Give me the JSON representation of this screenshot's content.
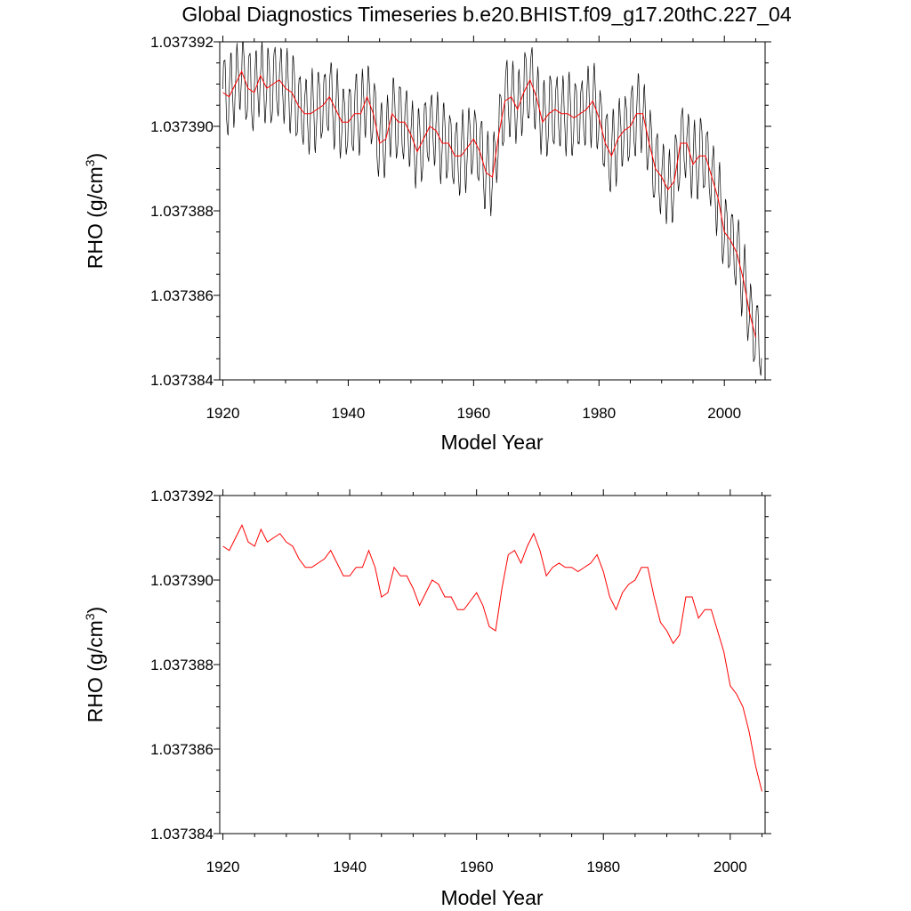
{
  "chart_data": [
    {
      "type": "line",
      "title": "Global Diagnostics Timeseries b.e20.BHIST.f09_g17.20thC.227_04",
      "xlabel": "Model Year",
      "ylabel": "RHO (g/cm",
      "ylabel_sup": "3",
      "ylabel_end": ")",
      "xlim": [
        1919.5,
        2006.5
      ],
      "ylim": [
        1.037384,
        1.037392
      ],
      "x_ticks": [
        1920,
        1940,
        1960,
        1980,
        2000
      ],
      "x_tick_labels": [
        "1920",
        "1940",
        "1960",
        "1980",
        "2000"
      ],
      "y_ticks": [
        1.037384,
        1.037386,
        1.037388,
        1.03739,
        1.037392
      ],
      "y_tick_labels": [
        "1.037384",
        "1.037386",
        "1.037388",
        "1.037390",
        "1.037392"
      ],
      "grid": false,
      "series": [
        {
          "kind": "monthly",
          "color": "#000000",
          "x_start": 1920,
          "x_step": 0.08333333,
          "amplitude": [
            1.0,
            1.0,
            1.0,
            1.0,
            1.0,
            1.0,
            1.0,
            1.0,
            1.0,
            1.0,
            1.0,
            1.0,
            1.0,
            1.0,
            1.0,
            1.0,
            1.0,
            1.0,
            1.0,
            1.0,
            1.0,
            1.0,
            1.0,
            1.0,
            1.0,
            1.0,
            1.0,
            1.0,
            1.0,
            1.0,
            1.0,
            1.0,
            1.0,
            1.0,
            1.0,
            1.0,
            1.0,
            1.0,
            1.0,
            1.0,
            1.0,
            1.0,
            1.0,
            1.0,
            1.0,
            1.0,
            1.0,
            1.0,
            1.0,
            1.0,
            1.0,
            1.0,
            1.0,
            1.0,
            1.0,
            1.0,
            1.0,
            1.0,
            1.0,
            1.0,
            1.0,
            1.0,
            1.0,
            1.0,
            1.0,
            1.0,
            1.0,
            1.0,
            1.0,
            1.0,
            1.0,
            1.0,
            1.0,
            1.0,
            1.0,
            1.0,
            1.0,
            1.0,
            1.0,
            1.0,
            1.0,
            1.0,
            1.0,
            1.0,
            1.0,
            1.0
          ],
          "annual_mean": [
            1.0373908,
            1.0373907,
            1.037391,
            1.0373913,
            1.0373909,
            1.0373908,
            1.0373912,
            1.0373909,
            1.037391,
            1.0373911,
            1.0373909,
            1.0373908,
            1.0373905,
            1.0373903,
            1.0373903,
            1.0373904,
            1.0373905,
            1.0373907,
            1.0373904,
            1.0373901,
            1.0373901,
            1.0373903,
            1.0373903,
            1.0373907,
            1.0373903,
            1.0373896,
            1.0373897,
            1.0373903,
            1.0373901,
            1.0373901,
            1.0373898,
            1.0373894,
            1.0373897,
            1.03739,
            1.0373899,
            1.0373896,
            1.0373896,
            1.0373893,
            1.0373893,
            1.0373895,
            1.0373897,
            1.0373894,
            1.0373889,
            1.0373888,
            1.0373898,
            1.0373906,
            1.0373907,
            1.0373904,
            1.0373908,
            1.0373911,
            1.0373907,
            1.0373901,
            1.0373903,
            1.0373904,
            1.0373903,
            1.0373903,
            1.0373902,
            1.0373903,
            1.0373904,
            1.0373906,
            1.0373902,
            1.0373896,
            1.0373893,
            1.0373897,
            1.0373899,
            1.03739,
            1.0373903,
            1.0373903,
            1.0373896,
            1.037389,
            1.0373888,
            1.0373885,
            1.0373887,
            1.0373896,
            1.0373896,
            1.0373891,
            1.0373893,
            1.0373893,
            1.0373888,
            1.0373883,
            1.0373875,
            1.0373873,
            1.037387,
            1.0373864,
            1.0373856,
            1.037385
          ],
          "seasonal_amplitude": 8.5e-07
        },
        {
          "kind": "annual",
          "color": "#ff0000",
          "x_start": 1920,
          "x_step": 1,
          "values": [
            1.0373908,
            1.0373907,
            1.037391,
            1.0373913,
            1.0373909,
            1.0373908,
            1.0373912,
            1.0373909,
            1.037391,
            1.0373911,
            1.0373909,
            1.0373908,
            1.0373905,
            1.0373903,
            1.0373903,
            1.0373904,
            1.0373905,
            1.0373907,
            1.0373904,
            1.0373901,
            1.0373901,
            1.0373903,
            1.0373903,
            1.0373907,
            1.0373903,
            1.0373896,
            1.0373897,
            1.0373903,
            1.0373901,
            1.0373901,
            1.0373898,
            1.0373894,
            1.0373897,
            1.03739,
            1.0373899,
            1.0373896,
            1.0373896,
            1.0373893,
            1.0373893,
            1.0373895,
            1.0373897,
            1.0373894,
            1.0373889,
            1.0373888,
            1.0373898,
            1.0373906,
            1.0373907,
            1.0373904,
            1.0373908,
            1.0373911,
            1.0373907,
            1.0373901,
            1.0373903,
            1.0373904,
            1.0373903,
            1.0373903,
            1.0373902,
            1.0373903,
            1.0373904,
            1.0373906,
            1.0373902,
            1.0373896,
            1.0373893,
            1.0373897,
            1.0373899,
            1.03739,
            1.0373903,
            1.0373903,
            1.0373896,
            1.037389,
            1.0373888,
            1.0373885,
            1.0373887,
            1.0373896,
            1.0373896,
            1.0373891,
            1.0373893,
            1.0373893,
            1.0373888,
            1.0373883,
            1.0373875,
            1.0373873,
            1.037387,
            1.0373864,
            1.0373856,
            1.037385
          ]
        }
      ]
    },
    {
      "type": "line",
      "title": "",
      "xlabel": "Model Year",
      "ylabel": "RHO (g/cm",
      "ylabel_sup": "3",
      "ylabel_end": ")",
      "xlim": [
        1919.5,
        2005.5
      ],
      "ylim": [
        1.037384,
        1.037392
      ],
      "x_ticks": [
        1920,
        1940,
        1960,
        1980,
        2000
      ],
      "x_tick_labels": [
        "1920",
        "1940",
        "1960",
        "1980",
        "2000"
      ],
      "y_ticks": [
        1.037384,
        1.037386,
        1.037388,
        1.03739,
        1.037392
      ],
      "y_tick_labels": [
        "1.037384",
        "1.037386",
        "1.037388",
        "1.037390",
        "1.037392"
      ],
      "grid": false,
      "series": [
        {
          "kind": "annual",
          "color": "#ff0000",
          "x_start": 1920,
          "x_step": 1,
          "values": [
            1.0373908,
            1.0373907,
            1.037391,
            1.0373913,
            1.0373909,
            1.0373908,
            1.0373912,
            1.0373909,
            1.037391,
            1.0373911,
            1.0373909,
            1.0373908,
            1.0373905,
            1.0373903,
            1.0373903,
            1.0373904,
            1.0373905,
            1.0373907,
            1.0373904,
            1.0373901,
            1.0373901,
            1.0373903,
            1.0373903,
            1.0373907,
            1.0373903,
            1.0373896,
            1.0373897,
            1.0373903,
            1.0373901,
            1.0373901,
            1.0373898,
            1.0373894,
            1.0373897,
            1.03739,
            1.0373899,
            1.0373896,
            1.0373896,
            1.0373893,
            1.0373893,
            1.0373895,
            1.0373897,
            1.0373894,
            1.0373889,
            1.0373888,
            1.0373898,
            1.0373906,
            1.0373907,
            1.0373904,
            1.0373908,
            1.0373911,
            1.0373907,
            1.0373901,
            1.0373903,
            1.0373904,
            1.0373903,
            1.0373903,
            1.0373902,
            1.0373903,
            1.0373904,
            1.0373906,
            1.0373902,
            1.0373896,
            1.0373893,
            1.0373897,
            1.0373899,
            1.03739,
            1.0373903,
            1.0373903,
            1.0373896,
            1.037389,
            1.0373888,
            1.0373885,
            1.0373887,
            1.0373896,
            1.0373896,
            1.0373891,
            1.0373893,
            1.0373893,
            1.0373888,
            1.0373883,
            1.0373875,
            1.0373873,
            1.037387,
            1.0373864,
            1.0373856,
            1.037385
          ]
        }
      ]
    }
  ]
}
